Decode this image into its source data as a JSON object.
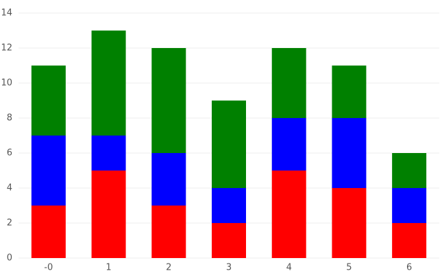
{
  "chart_data": {
    "type": "stacked-bar",
    "categories": [
      "-0",
      "1",
      "2",
      "3",
      "4",
      "5",
      "6"
    ],
    "series": [
      {
        "color": "#ff0000",
        "values": [
          3,
          5,
          3,
          2,
          5,
          4,
          2
        ]
      },
      {
        "color": "#0000ff",
        "values": [
          4,
          2,
          3,
          2,
          3,
          4,
          2
        ]
      },
      {
        "color": "#008000",
        "values": [
          4,
          6,
          6,
          5,
          4,
          3,
          2
        ]
      }
    ],
    "ylim": [
      0,
      14
    ],
    "yticks": [
      0,
      2,
      4,
      6,
      8,
      10,
      12,
      14
    ],
    "grid": true
  }
}
